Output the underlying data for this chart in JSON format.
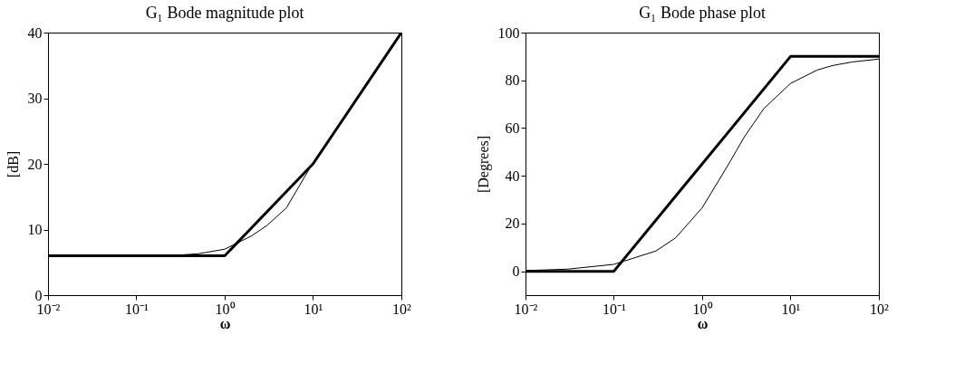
{
  "chart_data": [
    {
      "type": "line",
      "title": "G₁ Bode magnitude plot",
      "xlabel": "ω",
      "ylabel": "[dB]",
      "log": "x",
      "line_style": "solid",
      "xlim": [
        0.01,
        100
      ],
      "xticks": [
        {
          "value": 0.01,
          "label": "10⁻²"
        },
        {
          "value": 0.1,
          "label": "10⁻¹"
        },
        {
          "value": 1,
          "label": "10⁰"
        },
        {
          "value": 10,
          "label": "10¹"
        },
        {
          "value": 100,
          "label": "10²"
        }
      ],
      "ylim": [
        0,
        40
      ],
      "yticks": [
        0,
        10,
        20,
        30,
        40
      ],
      "series": [
        {
          "color": "#000000",
          "x": [
            0.01,
            1,
            10,
            100
          ],
          "values": [
            6,
            6,
            20,
            40
          ]
        },
        {
          "color": "#000000",
          "x": [
            0.01,
            0.03,
            0.1,
            0.3,
            0.5,
            1,
            2,
            3,
            5,
            10,
            20,
            30,
            50,
            100
          ],
          "values": [
            6.0,
            6.0,
            6.0,
            6.1,
            6.3,
            7.0,
            9.0,
            10.6,
            13.3,
            20.2,
            26.1,
            29.6,
            34.0,
            40.0
          ]
        }
      ]
    },
    {
      "type": "line",
      "title": "G₁ Bode phase plot",
      "xlabel": "ω",
      "ylabel": "[Degrees]",
      "log": "x",
      "line_style": "solid",
      "xlim": [
        0.01,
        100
      ],
      "xticks": [
        {
          "value": 0.01,
          "label": "10⁻²"
        },
        {
          "value": 0.1,
          "label": "10⁻¹"
        },
        {
          "value": 1,
          "label": "10⁰"
        },
        {
          "value": 10,
          "label": "10¹"
        },
        {
          "value": 100,
          "label": "10²"
        }
      ],
      "ylim": [
        -10,
        100
      ],
      "yticks": [
        0,
        20,
        40,
        60,
        80,
        100
      ],
      "series": [
        {
          "color": "#000000",
          "x": [
            0.01,
            0.1,
            10,
            100
          ],
          "values": [
            0,
            0,
            90,
            90
          ]
        },
        {
          "color": "#000000",
          "x": [
            0.01,
            0.03,
            0.1,
            0.3,
            0.5,
            1,
            2,
            3,
            5,
            10,
            20,
            30,
            50,
            100
          ],
          "values": [
            0.3,
            0.9,
            2.9,
            8.5,
            14,
            26.6,
            45,
            56.3,
            68.2,
            78.7,
            84.3,
            86.2,
            87.7,
            88.9
          ]
        }
      ]
    }
  ]
}
